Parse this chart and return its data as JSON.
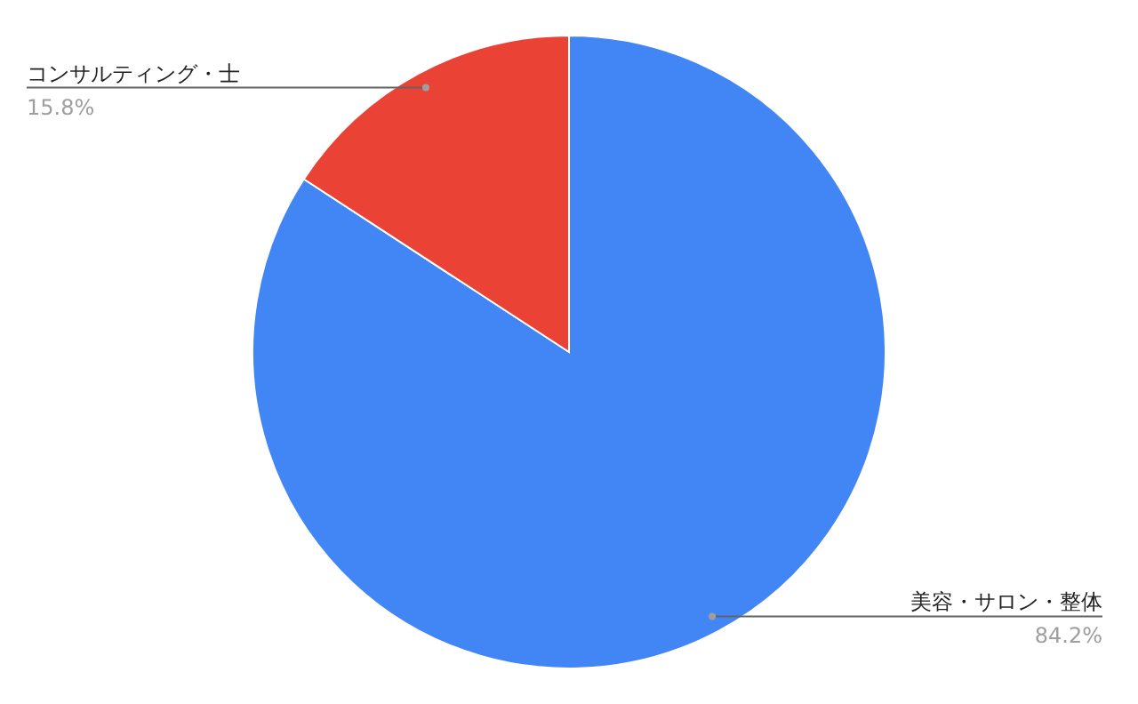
{
  "chart_data": {
    "type": "pie",
    "categories": [
      "美容・サロン・整体",
      "コンサルティング・士"
    ],
    "values": [
      84.2,
      15.8
    ],
    "colors": [
      "#4285f4",
      "#ea4335"
    ],
    "value_labels": [
      "84.2%",
      "15.8%"
    ]
  }
}
